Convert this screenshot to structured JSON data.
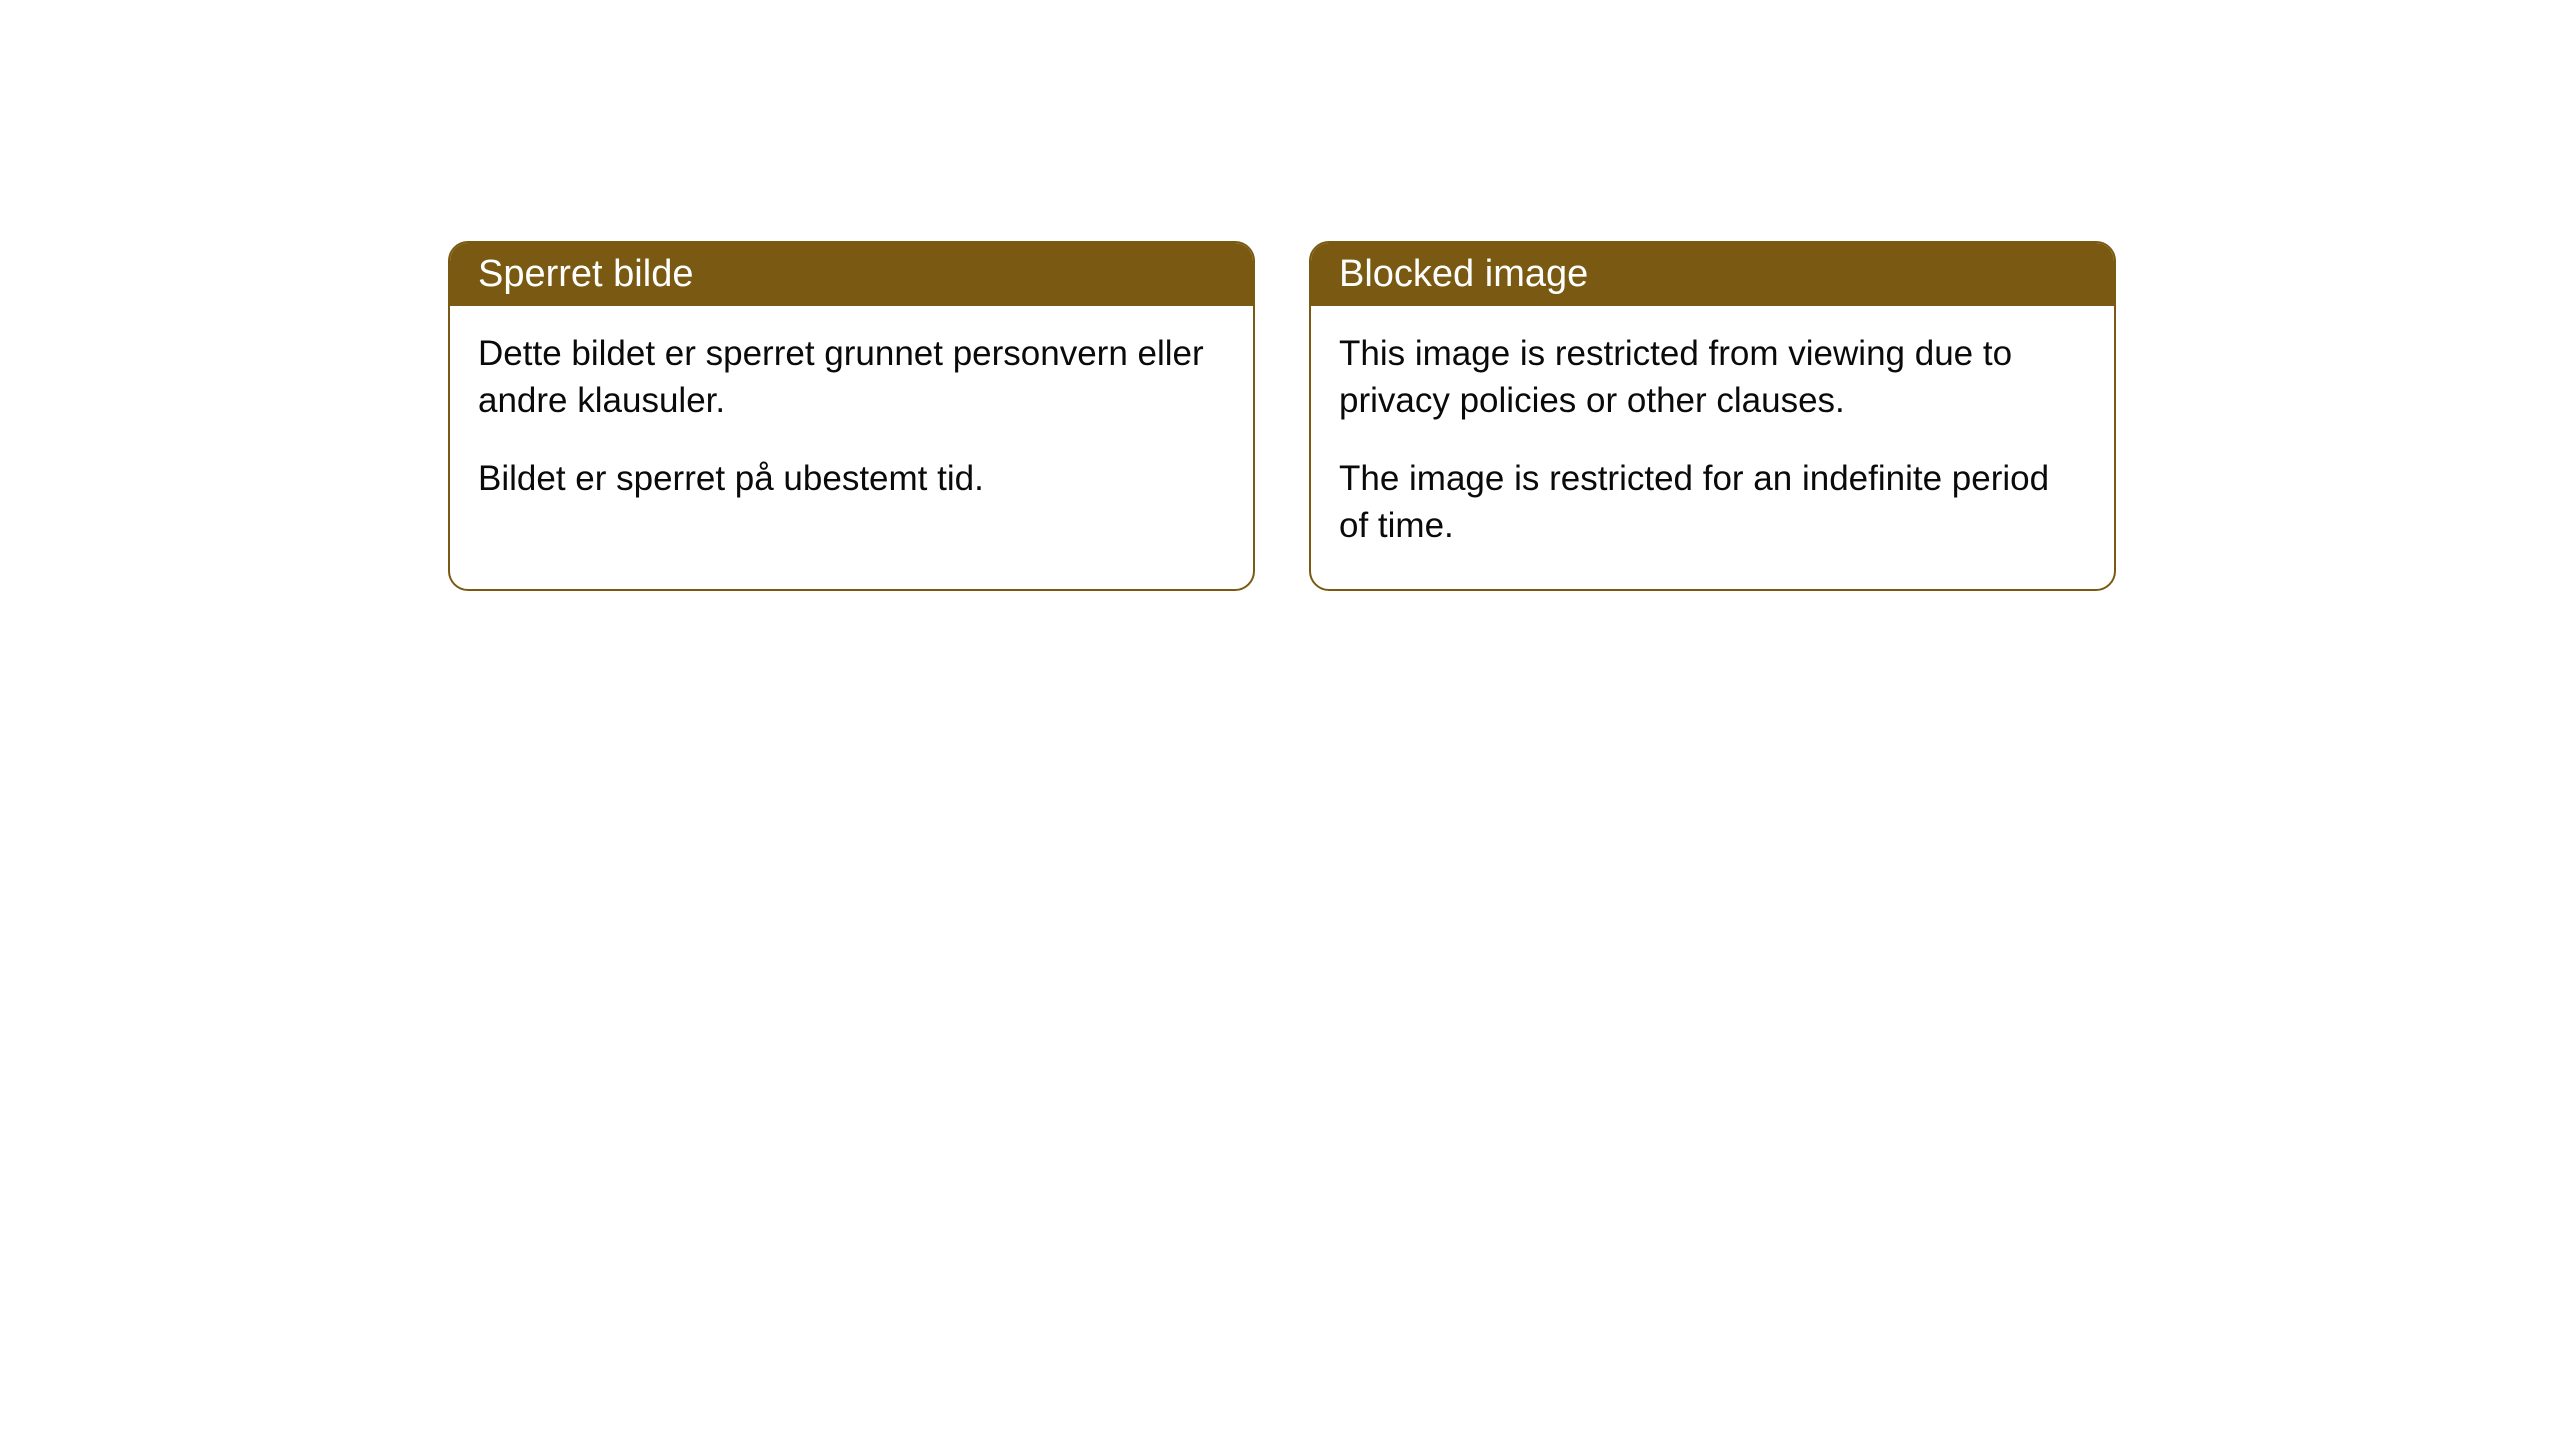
{
  "cards": [
    {
      "title": "Sperret bilde",
      "paragraph1": "Dette bildet er sperret grunnet personvern eller andre klausuler.",
      "paragraph2": "Bildet er sperret på ubestemt tid."
    },
    {
      "title": "Blocked image",
      "paragraph1": "This image is restricted from viewing due to privacy policies or other clauses.",
      "paragraph2": "The image is restricted for an indefinite period of time."
    }
  ],
  "style": {
    "header_background": "#7a5a12",
    "header_text_color": "#ffffff",
    "border_color": "#7a5a12",
    "body_background": "#ffffff",
    "body_text_color": "#0a0a0a",
    "border_radius": "20px",
    "title_fontsize": "38px",
    "body_fontsize": "35px"
  }
}
